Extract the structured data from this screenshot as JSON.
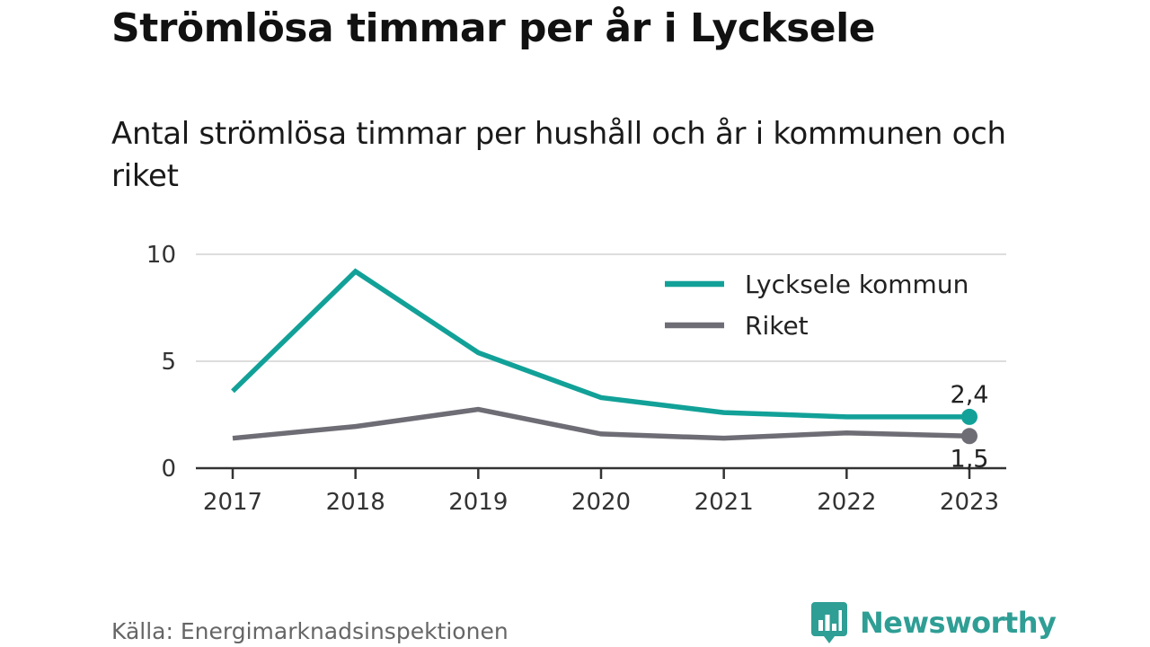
{
  "title": "Strömlösa timmar per år i Lycksele",
  "subtitle": "Antal strömlösa timmar per hushåll och år i kommunen och riket",
  "source": "Källa: Energimarknadsinspektionen",
  "brand": {
    "name": "Newsworthy",
    "icon": "newsworthy-logo-icon",
    "color": "#2f9e95"
  },
  "chart_data": {
    "type": "line",
    "x": [
      "2017",
      "2018",
      "2019",
      "2020",
      "2021",
      "2022",
      "2023"
    ],
    "ylim": [
      0,
      10
    ],
    "yticks": [
      "0",
      "5",
      "10"
    ],
    "grid": true,
    "legend_position": "top-right",
    "series": [
      {
        "name": "Lycksele kommun",
        "color": "#12a198",
        "values": [
          3.6,
          9.2,
          5.4,
          3.3,
          2.6,
          2.4,
          2.4
        ],
        "end_label": "2,4"
      },
      {
        "name": "Riket",
        "color": "#6e6d75",
        "values": [
          1.4,
          1.95,
          2.75,
          1.6,
          1.4,
          1.65,
          1.5
        ],
        "end_label": "1,5"
      }
    ]
  }
}
